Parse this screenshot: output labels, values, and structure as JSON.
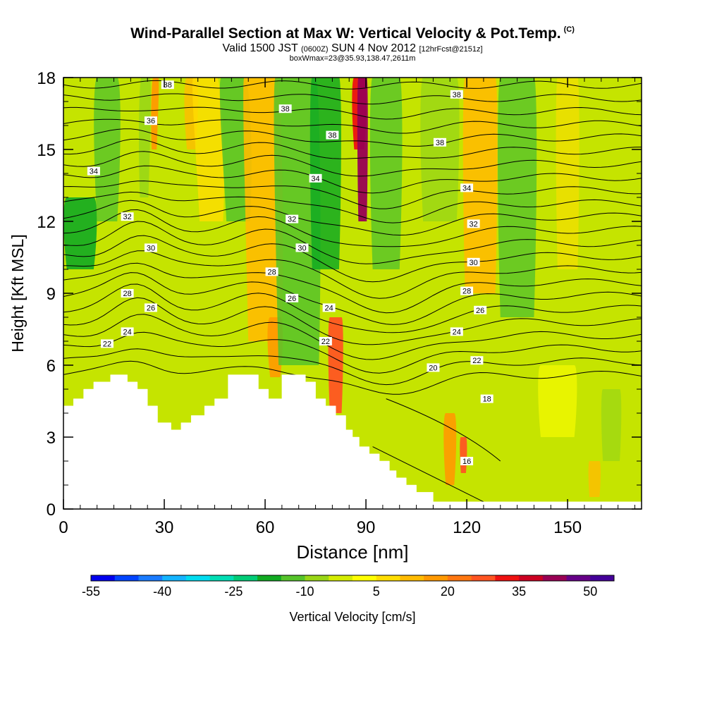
{
  "header": {
    "title": "Wind-Parallel Section at Max W: Vertical Velocity & Pot.Temp.",
    "copyright": "(C)",
    "valid_main": "Valid 1500 JST",
    "valid_utc": "(0600Z)",
    "valid_date": "SUN 4 Nov 2012",
    "forecast": "[12hrFcst@2151z]",
    "box_info": "boxWmax=23@35.93,138.47,2611m"
  },
  "chart_data": {
    "type": "heatmap",
    "xlabel": "Distance [nm]",
    "ylabel": "Height [Kft MSL]",
    "xlim": [
      0,
      172
    ],
    "ylim": [
      0,
      18
    ],
    "x_ticks": [
      0,
      30,
      60,
      90,
      120,
      150
    ],
    "y_ticks": [
      0,
      3,
      6,
      9,
      12,
      15,
      18
    ],
    "colorbar": {
      "label": "Vertical Velocity [cm/s]",
      "tick_labels": [
        "-55",
        "-40",
        "-25",
        "-10",
        "5",
        "20",
        "35",
        "50"
      ],
      "min": -55,
      "max": 55,
      "step": 5,
      "colors": [
        "#0000ee",
        "#0044ff",
        "#1a7bff",
        "#14b4ff",
        "#00dcf0",
        "#00ddb4",
        "#00cc77",
        "#11aa22",
        "#55c32a",
        "#99d616",
        "#d4ec00",
        "#ffff00",
        "#ffdd00",
        "#ffbb00",
        "#ff9900",
        "#ff7711",
        "#ff5522",
        "#ee1111",
        "#cc0022",
        "#990055",
        "#660088",
        "#440099"
      ]
    },
    "isentrope_labels": [
      {
        "x": 31,
        "y": 17.7,
        "text": "38"
      },
      {
        "x": 66,
        "y": 16.7,
        "text": "38"
      },
      {
        "x": 80,
        "y": 15.6,
        "text": "38"
      },
      {
        "x": 117,
        "y": 17.3,
        "text": "38"
      },
      {
        "x": 112,
        "y": 15.3,
        "text": "38"
      },
      {
        "x": 26,
        "y": 16.2,
        "text": "36"
      },
      {
        "x": 9,
        "y": 14.1,
        "text": "34"
      },
      {
        "x": 75,
        "y": 13.8,
        "text": "34"
      },
      {
        "x": 120,
        "y": 13.4,
        "text": "34"
      },
      {
        "x": 19,
        "y": 12.2,
        "text": "32"
      },
      {
        "x": 68,
        "y": 12.1,
        "text": "32"
      },
      {
        "x": 122,
        "y": 11.9,
        "text": "32"
      },
      {
        "x": 26,
        "y": 10.9,
        "text": "30"
      },
      {
        "x": 71,
        "y": 10.9,
        "text": "30"
      },
      {
        "x": 122,
        "y": 10.3,
        "text": "30"
      },
      {
        "x": 62,
        "y": 9.9,
        "text": "28"
      },
      {
        "x": 19,
        "y": 9.0,
        "text": "28"
      },
      {
        "x": 120,
        "y": 9.1,
        "text": "28"
      },
      {
        "x": 26,
        "y": 8.4,
        "text": "26"
      },
      {
        "x": 68,
        "y": 8.8,
        "text": "26"
      },
      {
        "x": 124,
        "y": 8.3,
        "text": "26"
      },
      {
        "x": 79,
        "y": 8.4,
        "text": "24"
      },
      {
        "x": 19,
        "y": 7.4,
        "text": "24"
      },
      {
        "x": 117,
        "y": 7.4,
        "text": "24"
      },
      {
        "x": 13,
        "y": 6.9,
        "text": "22"
      },
      {
        "x": 78,
        "y": 7.0,
        "text": "22"
      },
      {
        "x": 123,
        "y": 6.2,
        "text": "22"
      },
      {
        "x": 110,
        "y": 5.9,
        "text": "20"
      },
      {
        "x": 126,
        "y": 4.6,
        "text": "18"
      },
      {
        "x": 120,
        "y": 2.0,
        "text": "16"
      }
    ]
  }
}
